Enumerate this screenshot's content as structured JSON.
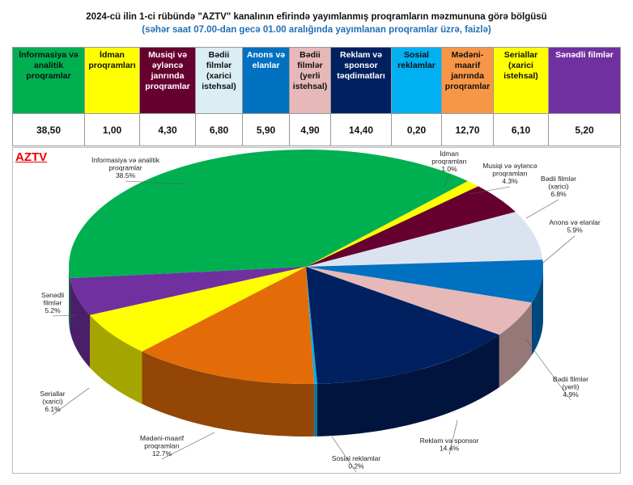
{
  "title": "2024-cü ilin 1-ci rübündə \"AZTV\" kanalının efirində yayımlanmış proqramların məzmununa görə bölgüsü",
  "subtitle": "(səhər saat 07.00-dan gecə 01.00 aralığında yayımlanan proqramlar üzrə, faizlə)",
  "table": {
    "headers": [
      "İnformasiya və analitik proqramlar",
      "İdman proqramları",
      "Musiqi və əyləncə janrında proqramlar",
      "Bədii filmlər (xarici istehsal)",
      "Anons və elanlar",
      "Bədii filmlər (yerli istehsal)",
      "Reklam və sponsor təqdimatları",
      "Sosial reklamlar",
      "Mədəni-maarif janrında proqramlar",
      "Seriallar (xarici istehsal)",
      "Sənədli filmlər"
    ],
    "values": [
      "38,50",
      "1,00",
      "4,30",
      "6,80",
      "5,90",
      "4,90",
      "14,40",
      "0,20",
      "12,70",
      "6,10",
      "5,20"
    ],
    "header_colors": [
      "#00b050",
      "#ffff00",
      "#66002e",
      "#daeef3",
      "#0070c0",
      "#e6b9b8",
      "#002060",
      "#00b0f0",
      "#f79646",
      "#ffff00",
      "#7030a0"
    ],
    "header_text_colors": [
      "#111",
      "#111",
      "#fff",
      "#111",
      "#fff",
      "#111",
      "#fff",
      "#111",
      "#111",
      "#111",
      "#fff"
    ]
  },
  "chart_data": {
    "type": "pie",
    "title": "AZTV",
    "slices": [
      {
        "name": "İdman proqramları",
        "value": 1.0,
        "label": [
          "İdman",
          "proqramları",
          "1.0%"
        ],
        "color": "#ffff00"
      },
      {
        "name": "Musiqi və əyləncə proqramları",
        "value": 4.3,
        "label": [
          "Musiqi və əyləncə",
          "proqramları",
          "4.3%"
        ],
        "color": "#66002e"
      },
      {
        "name": "Bədii filmlər (xarici)",
        "value": 6.8,
        "label": [
          "Bədii filmlər",
          "(xarici)",
          "6.8%"
        ],
        "color": "#dce3f0"
      },
      {
        "name": "Anons və elanlar",
        "value": 5.9,
        "label": [
          "Anons və elanlar",
          "5.9%"
        ],
        "color": "#0070c0"
      },
      {
        "name": "Bədii filmlər (yerli)",
        "value": 4.9,
        "label": [
          "Bədii filmlər",
          "(yerli)",
          "4.9%"
        ],
        "color": "#e6b9b8"
      },
      {
        "name": "Reklam və sponsor",
        "value": 14.4,
        "label": [
          "Reklam və sponsor",
          "14.4%"
        ],
        "color": "#002060"
      },
      {
        "name": "Sosial reklamlar",
        "value": 0.2,
        "label": [
          "Sosial reklamlar",
          "0.2%"
        ],
        "color": "#00b0f0"
      },
      {
        "name": "Mədəni-maarif proqramları",
        "value": 12.7,
        "label": [
          "Mədəni-maarif",
          "proqramları",
          "12.7%"
        ],
        "color": "#e36c09"
      },
      {
        "name": "Seriallar (xarici)",
        "value": 6.1,
        "label": [
          "Seriallar",
          "(xarici)",
          "6.1%"
        ],
        "color": "#ffff00"
      },
      {
        "name": "Sənədli filmlər",
        "value": 5.2,
        "label": [
          "Sənədli",
          "filmlər",
          "5.2%"
        ],
        "color": "#7030a0"
      },
      {
        "name": "İnformasiya və analitik proqramlar",
        "value": 38.5,
        "label": [
          "İnformasiya və analitik",
          "proqramlar",
          "38.5%"
        ],
        "color": "#00b050"
      }
    ]
  }
}
